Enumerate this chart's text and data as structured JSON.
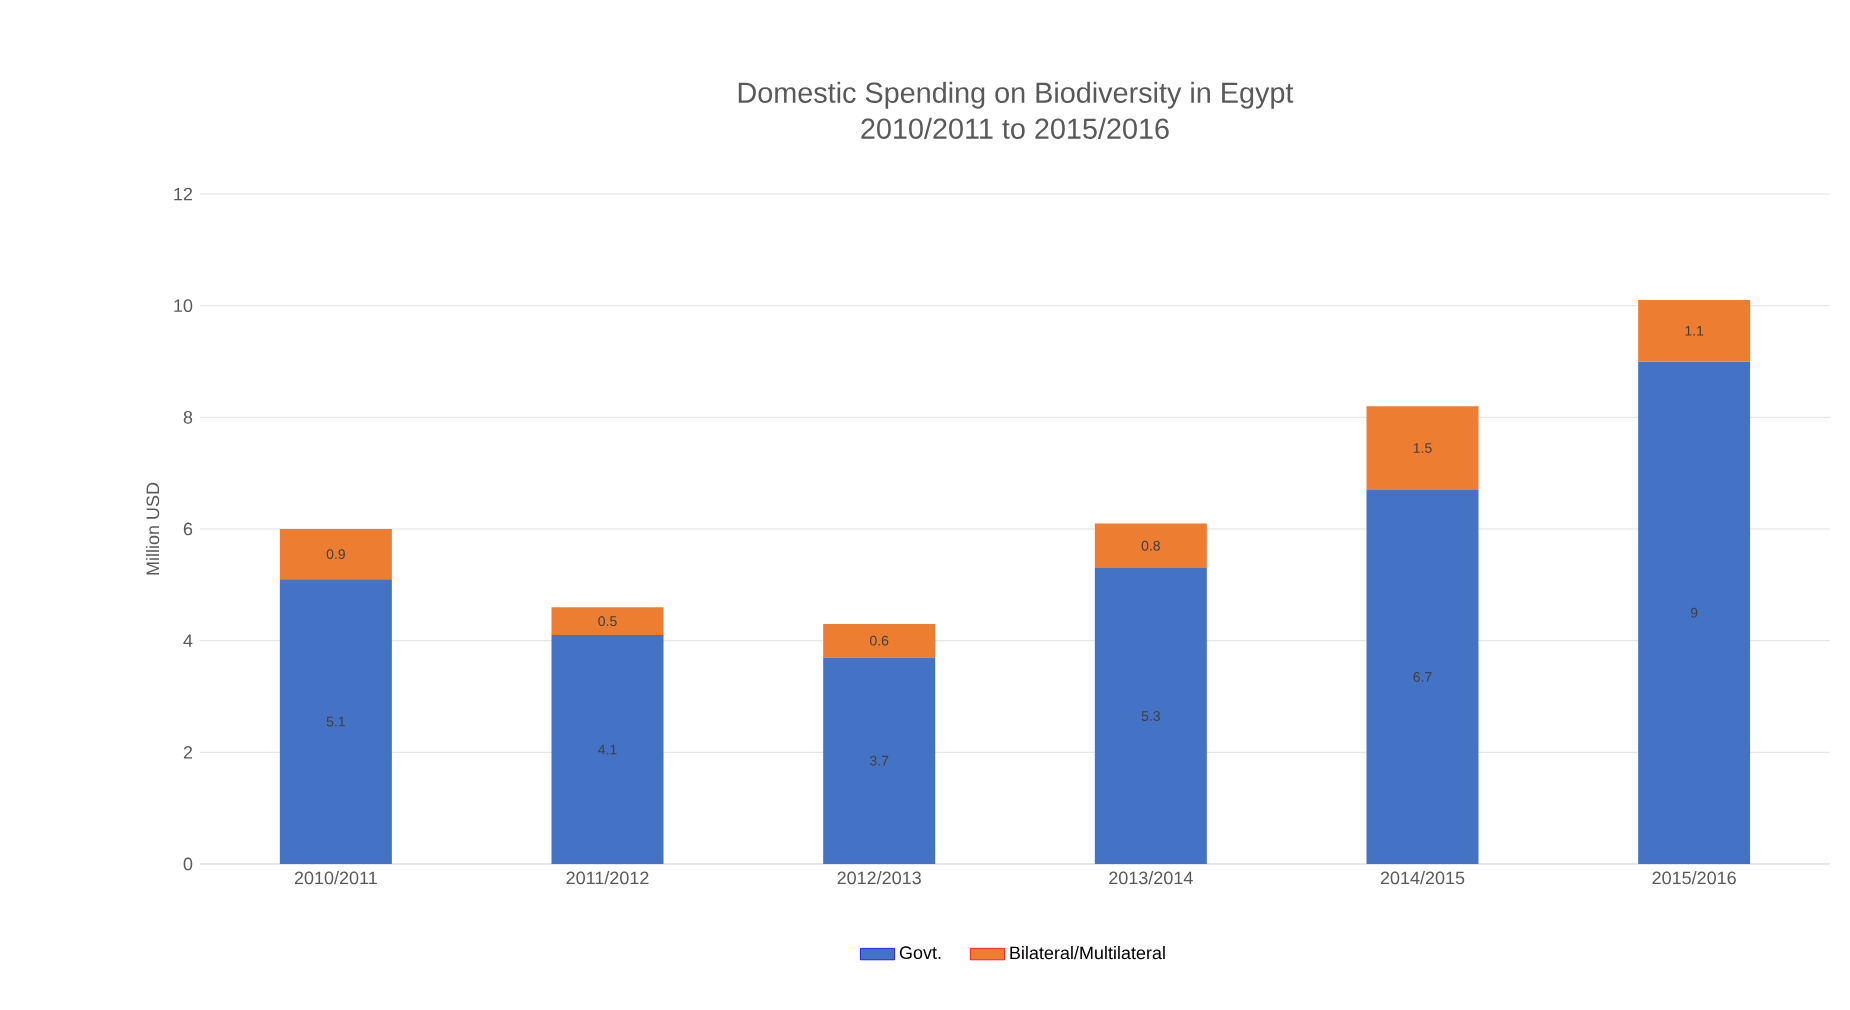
{
  "chart_data": {
    "type": "bar",
    "title": "Domestic Spending on Biodiversity in Egypt",
    "subtitle": "2010/2011 to 2015/2016",
    "ylabel": "Million USD",
    "categories": [
      "2010/2011",
      "2011/2012",
      "2012/2013",
      "2013/2014",
      "2014/2015",
      "2015/2016"
    ],
    "series": [
      {
        "name": "Govt.",
        "color": "#4472c4",
        "values": [
          5.1,
          4.1,
          3.7,
          5.3,
          6.7,
          9
        ]
      },
      {
        "name": "Bilateral/Multilateral",
        "color": "#ed7d31",
        "values": [
          0.9,
          0.5,
          0.6,
          0.8,
          1.5,
          1.1
        ]
      }
    ],
    "stacked": true,
    "data_labels": true,
    "ylim": [
      0,
      12
    ],
    "yticks": [
      0,
      2,
      4,
      6,
      8,
      10,
      12
    ],
    "grid": "y",
    "legend": "bottom"
  }
}
